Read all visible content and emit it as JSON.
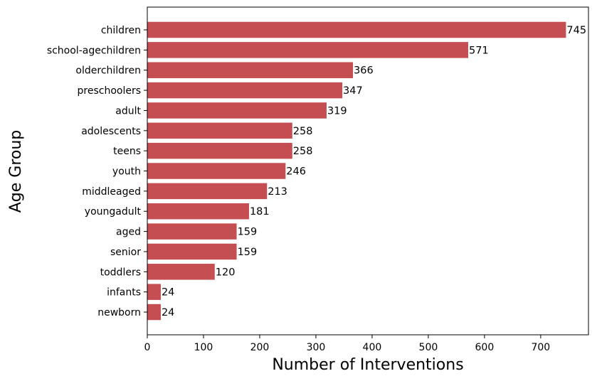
{
  "chart_data": {
    "type": "bar",
    "orientation": "horizontal",
    "title": "",
    "xlabel": "Number of Interventions",
    "ylabel": "Age Group",
    "xlim": [
      0,
      785
    ],
    "xticks": [
      0,
      100,
      200,
      300,
      400,
      500,
      600,
      700
    ],
    "grid": false,
    "legend": "none",
    "bar_color": "#c44e52",
    "categories": [
      "children",
      "school-agechildren",
      "olderchildren",
      "preschoolers",
      "adult",
      "adolescents",
      "teens",
      "youth",
      "middleaged",
      "youngadult",
      "aged",
      "senior",
      "toddlers",
      "infants",
      "newborn"
    ],
    "values": [
      745,
      571,
      366,
      347,
      319,
      258,
      258,
      246,
      213,
      181,
      159,
      159,
      120,
      24,
      24
    ]
  }
}
